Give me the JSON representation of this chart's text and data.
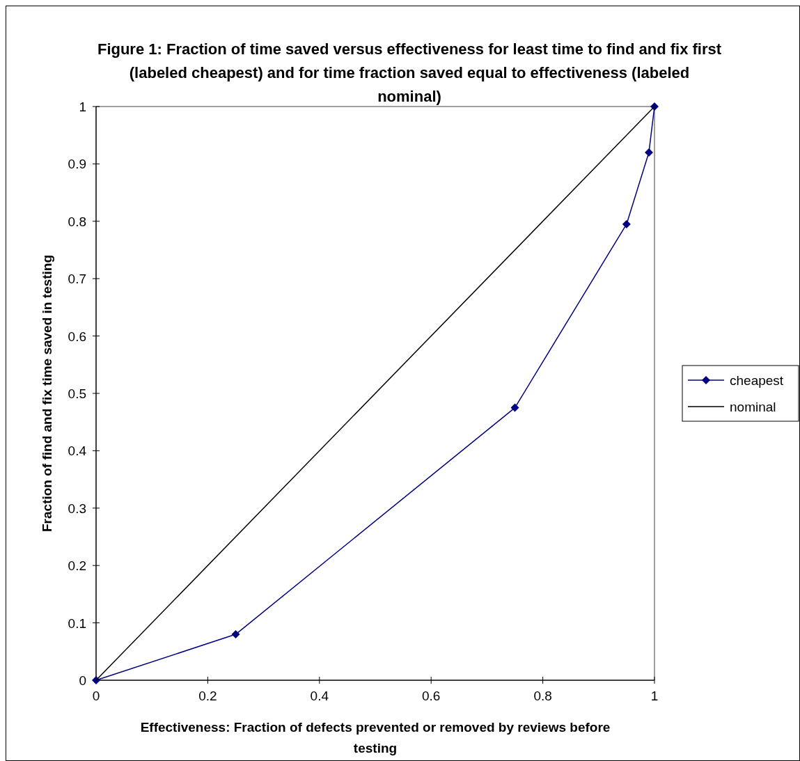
{
  "chart_data": {
    "type": "line",
    "title": "Figure 1: Fraction of time saved versus effectiveness for least time to find and fix first (labeled cheapest) and for time fraction saved equal to effectiveness (labeled nominal)",
    "xlabel": "Effectiveness: Fraction of defects prevented or removed by reviews before testing",
    "ylabel": "Fraction of find and fix time saved in testing",
    "xlim": [
      0,
      1
    ],
    "ylim": [
      0,
      1
    ],
    "xticks": [
      0,
      0.2,
      0.4,
      0.6,
      0.8,
      1
    ],
    "yticks": [
      0,
      0.1,
      0.2,
      0.3,
      0.4,
      0.5,
      0.6,
      0.7,
      0.8,
      0.9,
      1
    ],
    "grid": false,
    "legend": "right",
    "series": [
      {
        "name": "cheapest",
        "color": "#000080",
        "marker": "diamond",
        "x": [
          0,
          0.25,
          0.75,
          0.95,
          0.99,
          1
        ],
        "values": [
          0,
          0.08,
          0.475,
          0.795,
          0.92,
          1
        ]
      },
      {
        "name": "nominal",
        "color": "#000000",
        "marker": "none",
        "x": [
          0,
          1
        ],
        "values": [
          0,
          1
        ]
      }
    ]
  }
}
